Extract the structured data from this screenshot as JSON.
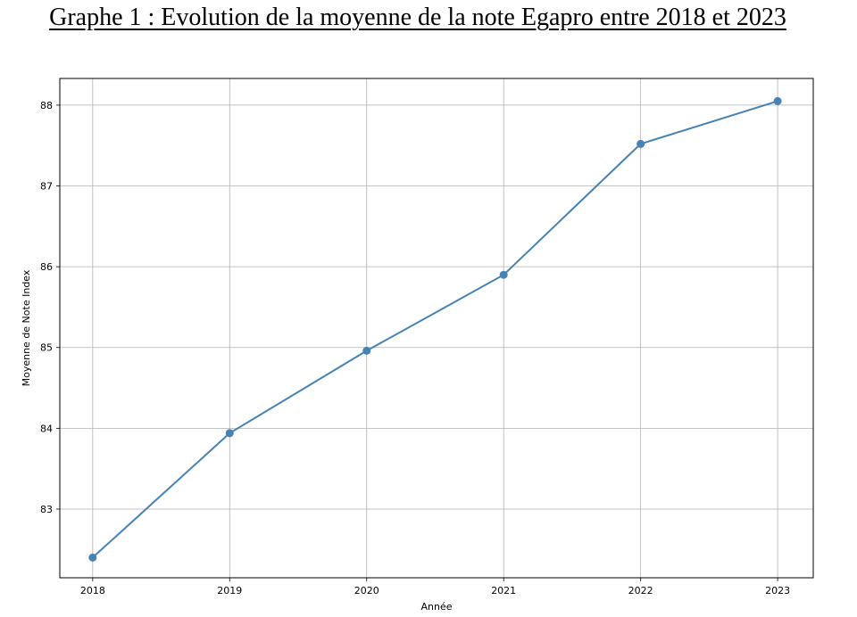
{
  "title": "Graphe 1 : Evolution de la moyenne de la note Egapro entre 2018 et 2023",
  "chart_data": {
    "type": "line",
    "xlabel": "Année",
    "ylabel": "Moyenne de Note Index",
    "x": [
      2018,
      2019,
      2020,
      2021,
      2022,
      2023
    ],
    "series": [
      {
        "values": [
          82.4,
          83.94,
          84.96,
          85.9,
          87.52,
          88.05
        ],
        "color": "#4682b4",
        "marker": "circle"
      }
    ],
    "xticks": [
      "2018",
      "2019",
      "2020",
      "2021",
      "2022",
      "2023"
    ],
    "yticks": [
      "83",
      "84",
      "85",
      "86",
      "87",
      "88"
    ],
    "xlim": [
      2017.76,
      2023.26
    ],
    "ylim": [
      82.15,
      88.33
    ],
    "grid": true
  }
}
